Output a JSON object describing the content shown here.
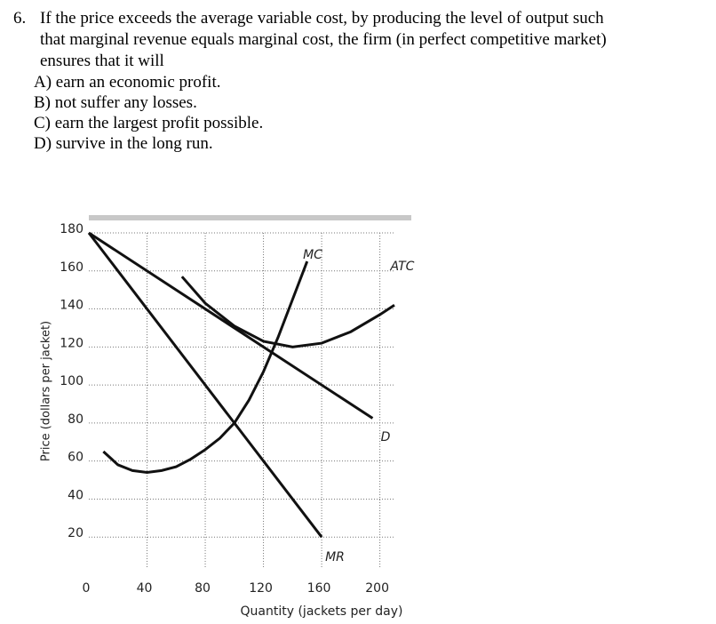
{
  "question": {
    "number": "6.",
    "lines": [
      "If the price exceeds the average variable cost, by producing the level of output such",
      "that marginal revenue equals marginal cost, the firm (in perfect competitive market)",
      "ensures that it will"
    ],
    "options": [
      "A) earn an economic profit.",
      "B) not suffer any losses.",
      "C) earn the largest profit possible.",
      "D) survive in the long run."
    ]
  },
  "chart_data": {
    "type": "line",
    "x_label": "Quantity (jackets per day)",
    "y_label": "Price (dollars per jacket)",
    "xlim": [
      0,
      210
    ],
    "ylim": [
      0,
      180
    ],
    "xticks": [
      0,
      40,
      80,
      120,
      160,
      200
    ],
    "yticks": [
      20,
      40,
      60,
      80,
      100,
      120,
      140,
      160,
      180
    ],
    "grid": true,
    "series": [
      {
        "name": "MC",
        "color": "#111111",
        "x": [
          10,
          20,
          30,
          40,
          50,
          60,
          70,
          80,
          90,
          100,
          110,
          120,
          130,
          140,
          150
        ],
        "values": [
          65,
          58,
          55,
          54,
          55,
          57,
          61,
          66,
          72,
          80,
          92,
          107,
          125,
          145,
          165
        ]
      },
      {
        "name": "ATC",
        "color": "#111111",
        "x": [
          64,
          80,
          100,
          120,
          140,
          160,
          180,
          200,
          210
        ],
        "values": [
          157,
          143,
          131,
          123,
          120,
          122,
          128,
          137,
          142
        ]
      },
      {
        "name": "D",
        "color": "#111111",
        "x": [
          0,
          195
        ],
        "values": [
          180,
          82.5
        ]
      },
      {
        "name": "MR",
        "color": "#111111",
        "x": [
          0,
          160
        ],
        "values": [
          180,
          20
        ]
      }
    ]
  }
}
